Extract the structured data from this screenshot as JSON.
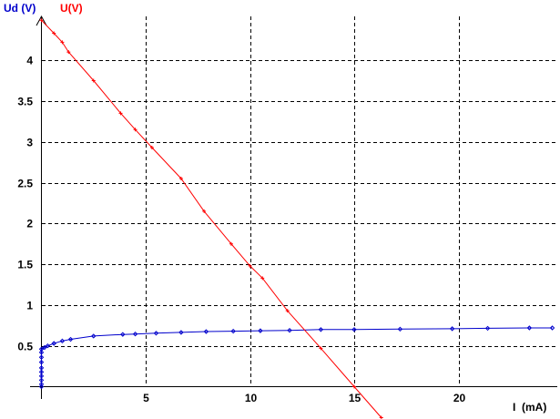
{
  "chart_data": {
    "type": "line",
    "title": "",
    "xlabel": "I  (mA)",
    "ylabels": [
      {
        "text": "Ud (V)",
        "color": "#0000cc"
      },
      {
        "text": "U(V)",
        "color": "#ff0000"
      }
    ],
    "xlim": [
      0,
      24.5
    ],
    "ylim": [
      0,
      4.5
    ],
    "x_ticks": [
      5,
      10,
      15,
      20
    ],
    "y_ticks": [
      0.5,
      1,
      1.5,
      2,
      2.5,
      3,
      3.5,
      4
    ],
    "y_tick_labels": [
      "0.5",
      "1",
      "1.5",
      "2",
      "2.5",
      "3",
      "3.5",
      "4"
    ],
    "grid": true,
    "series": [
      {
        "color": "#0000cc",
        "x": [
          0,
          0,
          0,
          0,
          0,
          0,
          0,
          0,
          0,
          0,
          0.15,
          0.3,
          0.6,
          1.0,
          1.4,
          2.5,
          3.9,
          4.5,
          5.5,
          6.7,
          7.9,
          9.2,
          10.5,
          11.9,
          13.4,
          15.0,
          17.2,
          19.7,
          21.4,
          23.4,
          24.5
        ],
        "y": [
          0,
          0.03,
          0.08,
          0.13,
          0.18,
          0.23,
          0.3,
          0.36,
          0.42,
          0.46,
          0.48,
          0.5,
          0.53,
          0.56,
          0.58,
          0.62,
          0.64,
          0.645,
          0.655,
          0.665,
          0.675,
          0.68,
          0.685,
          0.69,
          0.7,
          0.7,
          0.705,
          0.71,
          0.715,
          0.72,
          0.72
        ]
      },
      {
        "color": "#ff0000",
        "x": [
          0,
          0.6,
          1.0,
          1.3,
          2.5,
          3.8,
          4.5,
          5.3,
          6.7,
          7.8,
          9.1,
          10.0,
          10.6,
          11.8,
          13.4,
          15.0,
          16.3
        ],
        "y": [
          4.49,
          4.33,
          4.22,
          4.1,
          3.75,
          3.35,
          3.15,
          2.93,
          2.55,
          2.15,
          1.75,
          1.48,
          1.33,
          0.93,
          0.47,
          0.0,
          -0.38
        ]
      }
    ]
  }
}
